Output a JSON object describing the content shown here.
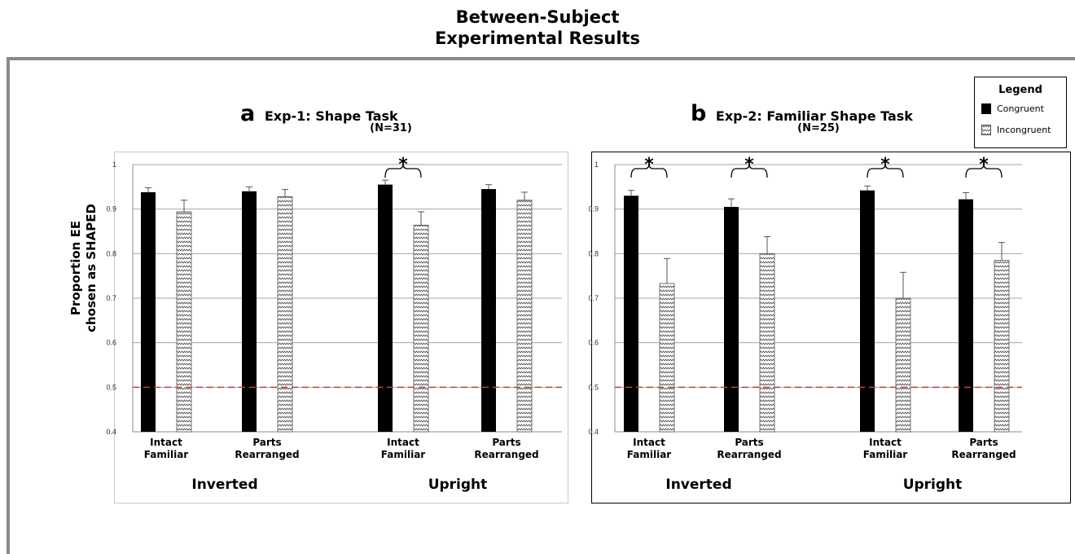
{
  "figure": {
    "title_line1": "Between-Subject",
    "title_line2": "Experimental Results",
    "ylabel_line1": "Proportion EE",
    "ylabel_line2": "chosen as SHAPED"
  },
  "legend": {
    "title": "Legend",
    "items": [
      {
        "label": "Congruent",
        "pattern": "solid-black"
      },
      {
        "label": "Incongruent",
        "pattern": "wavy-hatch"
      }
    ]
  },
  "colors": {
    "congruent": "#000000",
    "incongruent_line": "#555555",
    "chance_line": "#e8322e",
    "grid": "#a6a6a6"
  },
  "chart_data": [
    {
      "type": "bar",
      "panel_letter": "a",
      "title": "Exp-1: Shape Task",
      "subtitle": "(N=31)",
      "ylim": [
        0.4,
        1
      ],
      "yticks": [
        "0.4",
        "0.5",
        "0.6",
        "0.7",
        "0.8",
        "0.9",
        "1"
      ],
      "categories": [
        {
          "line1": "Intact",
          "line2": "Familiar"
        },
        {
          "line1": "Parts",
          "line2": "Rearranged"
        },
        {
          "line1": "Intact",
          "line2": "Familiar"
        },
        {
          "line1": "Parts",
          "line2": "Rearranged"
        }
      ],
      "groups": [
        "Inverted",
        "Upright"
      ],
      "series": [
        {
          "name": "Congruent",
          "values": [
            0.938,
            0.94,
            0.955,
            0.945
          ],
          "errors": [
            0.01,
            0.01,
            0.01,
            0.01
          ]
        },
        {
          "name": "Incongruent",
          "values": [
            0.894,
            0.928,
            0.864,
            0.92
          ],
          "errors": [
            0.026,
            0.016,
            0.03,
            0.018
          ]
        }
      ],
      "significance_marker": "*",
      "significant": [
        false,
        false,
        true,
        false
      ],
      "reference_line": 0.5
    },
    {
      "type": "bar",
      "panel_letter": "b",
      "title": "Exp-2: Familiar Shape Task",
      "subtitle": "(N=25)",
      "ylim": [
        0.4,
        1
      ],
      "yticks": [
        "0.4",
        "0.5",
        "0.6",
        "0.7",
        "0.8",
        "0.9",
        "1"
      ],
      "categories": [
        {
          "line1": "Intact",
          "line2": "Familiar"
        },
        {
          "line1": "Parts",
          "line2": "Rearranged"
        },
        {
          "line1": "Intact",
          "line2": "Familiar"
        },
        {
          "line1": "Parts",
          "line2": "Rearranged"
        }
      ],
      "groups": [
        "Inverted",
        "Upright"
      ],
      "series": [
        {
          "name": "Congruent",
          "values": [
            0.93,
            0.905,
            0.942,
            0.922
          ],
          "errors": [
            0.012,
            0.018,
            0.01,
            0.015
          ]
        },
        {
          "name": "Incongruent",
          "values": [
            0.733,
            0.8,
            0.7,
            0.785
          ],
          "errors": [
            0.056,
            0.038,
            0.058,
            0.04
          ]
        }
      ],
      "significance_marker": "*",
      "significant": [
        true,
        true,
        true,
        true
      ],
      "reference_line": 0.5
    }
  ]
}
